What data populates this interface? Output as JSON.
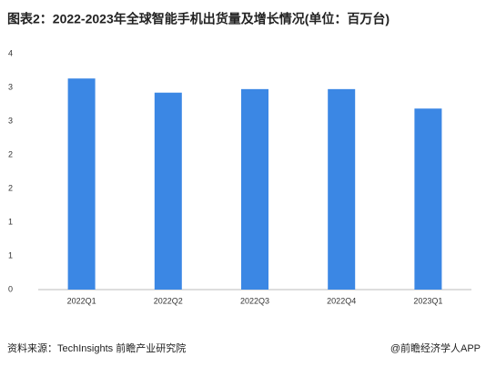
{
  "chart_data": {
    "type": "bar",
    "title": "图表2：2022-2023年全球智能手机出货量及增长情况(单位：百万台)",
    "categories": [
      "2022Q1",
      "2022Q2",
      "2022Q3",
      "2022Q4",
      "2023Q1"
    ],
    "values": [
      3.58,
      3.34,
      3.4,
      3.4,
      3.07
    ],
    "color": "#3b87e4",
    "ylim": [
      0,
      4
    ],
    "yticks": [
      0,
      {
        "value": 0.571,
        "label": "1"
      },
      {
        "value": 1.143,
        "label": "1"
      },
      {
        "value": 1.714,
        "label": "2"
      },
      {
        "value": 2.286,
        "label": "2"
      },
      {
        "value": 2.857,
        "label": "3"
      },
      {
        "value": 3.429,
        "label": "3"
      },
      4
    ],
    "grid": false,
    "source": "资料来源：TechInsights 前瞻产业研究院",
    "credit": "@前瞻经济学人APP"
  }
}
